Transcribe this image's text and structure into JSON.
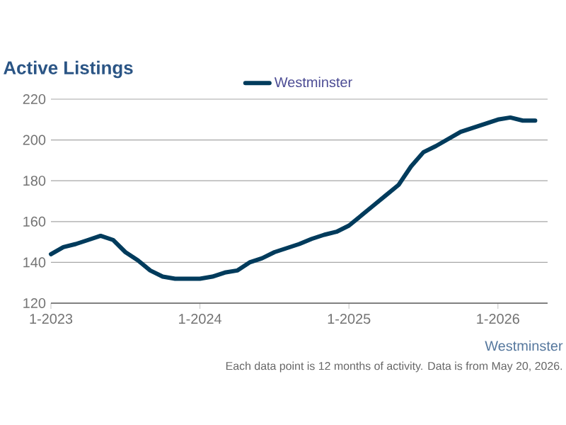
{
  "chart_data": {
    "type": "line",
    "title": "Active Listings",
    "x": [
      "2023-01",
      "2023-02",
      "2023-03",
      "2023-04",
      "2023-05",
      "2023-06",
      "2023-07",
      "2023-08",
      "2023-09",
      "2023-10",
      "2023-11",
      "2023-12",
      "2024-01",
      "2024-02",
      "2024-03",
      "2024-04",
      "2024-05",
      "2024-06",
      "2024-07",
      "2024-08",
      "2024-09",
      "2024-10",
      "2024-11",
      "2024-12",
      "2025-01",
      "2025-02",
      "2025-03",
      "2025-04",
      "2025-05",
      "2025-06",
      "2025-07",
      "2025-08",
      "2025-09",
      "2025-10",
      "2025-11",
      "2025-12",
      "2026-01",
      "2026-02",
      "2026-03",
      "2026-04"
    ],
    "series": [
      {
        "name": "Westminster",
        "color": "#003b5c",
        "values": [
          144,
          147.5,
          149,
          151,
          153,
          151,
          145,
          141,
          136,
          133,
          132,
          132,
          132,
          133,
          135,
          136,
          140,
          142,
          145,
          147,
          149,
          151.5,
          153.5,
          155,
          158,
          163,
          168,
          173,
          178,
          187,
          194,
          197,
          200.5,
          204,
          206,
          208,
          210,
          211,
          209.5,
          209.5
        ]
      }
    ],
    "xlim": [
      "2023-01",
      "2026-05"
    ],
    "xticks": [
      {
        "value": "2023-01",
        "label": "1-2023"
      },
      {
        "value": "2024-01",
        "label": "1-2024"
      },
      {
        "value": "2025-01",
        "label": "1-2025"
      },
      {
        "value": "2026-01",
        "label": "1-2026"
      }
    ],
    "ylim": [
      120,
      220
    ],
    "yticks": [
      120,
      140,
      160,
      180,
      200,
      220
    ],
    "grid": "y",
    "legend": "top",
    "annotations": [
      "Westminster",
      "Each data point is 12 months of activity. Data is from May 20, 2026."
    ]
  }
}
